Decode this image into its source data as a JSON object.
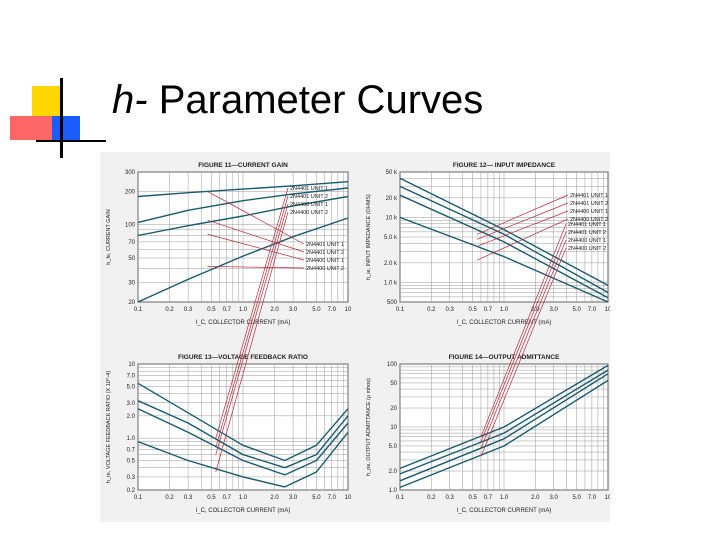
{
  "slide": {
    "title_h": "h-",
    "title_rest": "Parameter Curves"
  },
  "colors": {
    "curve": "#1a5a6e",
    "grid": "#9a9a9a",
    "annot": "#b03040"
  },
  "chart_data": [
    {
      "type": "line",
      "title": "FIGURE 11—CURRENT GAIN",
      "xlabel": "I_C, COLLECTOR CURRENT (mA)",
      "ylabel": "h_fe, CURRENT GAIN",
      "xscale": "log",
      "yscale": "log",
      "xlim": [
        0.1,
        10
      ],
      "ylim": [
        20,
        300
      ],
      "xticks": [
        "0.1",
        "0.2",
        "0.3",
        "0.5",
        "0.7",
        "1.0",
        "2.0",
        "3.0",
        "5.0",
        "7.0",
        "10"
      ],
      "yticks": [
        "300",
        "200",
        "100",
        "70",
        "50",
        "30",
        "20"
      ],
      "series": [
        {
          "name": "2N4401 UNIT 1",
          "x": [
            0.1,
            0.3,
            1,
            3,
            10
          ],
          "y": [
            180,
            195,
            210,
            225,
            245
          ]
        },
        {
          "name": "2N4401 UNIT 2",
          "x": [
            0.1,
            0.3,
            1,
            3,
            10
          ],
          "y": [
            105,
            135,
            165,
            190,
            215
          ]
        },
        {
          "name": "2N4400 UNIT 1",
          "x": [
            0.1,
            0.3,
            1,
            3,
            10
          ],
          "y": [
            80,
            98,
            120,
            148,
            180
          ]
        },
        {
          "name": "2N4400 UNIT 2",
          "x": [
            0.1,
            0.3,
            1,
            3,
            10
          ],
          "y": [
            20,
            32,
            52,
            78,
            115
          ]
        }
      ]
    },
    {
      "type": "line",
      "title": "FIGURE 12— INPUT IMPEDANCE",
      "xlabel": "I_C, COLLECTOR CURRENT (mA)",
      "ylabel": "h_ie, INPUT IMPEDANCE (OHMS)",
      "xscale": "log",
      "yscale": "log",
      "xlim": [
        0.1,
        10
      ],
      "ylim": [
        500,
        50000
      ],
      "xticks": [
        "0.1",
        "0.2",
        "0.3",
        "0.5",
        "0.7",
        "1.0",
        "2.0",
        "3.0",
        "5.0",
        "7.0",
        "10"
      ],
      "yticks": [
        "50 k",
        "20 k",
        "10 k",
        "5.0 k",
        "2.0 k",
        "1.0 k",
        "500"
      ],
      "series": [
        {
          "name": "2N4401 UNIT 1",
          "x": [
            0.1,
            1,
            10
          ],
          "y": [
            40000,
            6500,
            900
          ]
        },
        {
          "name": "2N4401 UNIT 2",
          "x": [
            0.1,
            1,
            10
          ],
          "y": [
            30000,
            5500,
            700
          ]
        },
        {
          "name": "2N4400 UNIT 1",
          "x": [
            0.1,
            1,
            10
          ],
          "y": [
            22000,
            4200,
            580
          ]
        },
        {
          "name": "2N4400 UNIT 2",
          "x": [
            0.1,
            1,
            10
          ],
          "y": [
            10000,
            2500,
            500
          ]
        }
      ]
    },
    {
      "type": "line",
      "title": "FIGURE 13—VOLTAGE FEEDBACK RATIO",
      "xlabel": "I_C, COLLECTOR CURRENT (mA)",
      "ylabel": "h_re, VOLTAGE FEEDBACK RATIO (X 10^-4)",
      "xscale": "log",
      "yscale": "log",
      "xlim": [
        0.1,
        10
      ],
      "ylim": [
        0.2,
        10
      ],
      "xticks": [
        "0.1",
        "0.2",
        "0.3",
        "0.5",
        "0.7",
        "1.0",
        "2.0",
        "3.0",
        "5.0",
        "7.0",
        "10"
      ],
      "yticks": [
        "10",
        "7.0",
        "5.0",
        "3.0",
        "2.0",
        "1.0",
        "0.7",
        "0.5",
        "0.3",
        "0.2"
      ],
      "series": [
        {
          "name": "2N4401 UNIT 1",
          "x": [
            0.1,
            0.3,
            1,
            2.5,
            5,
            10
          ],
          "y": [
            5.5,
            2.2,
            0.8,
            0.5,
            0.8,
            2.5
          ]
        },
        {
          "name": "2N4401 UNIT 2",
          "x": [
            0.1,
            0.3,
            1,
            2.5,
            5,
            10
          ],
          "y": [
            3.2,
            1.6,
            0.6,
            0.4,
            0.6,
            2.0
          ]
        },
        {
          "name": "2N4400 UNIT 1",
          "x": [
            0.1,
            0.3,
            1,
            2.5,
            5,
            10
          ],
          "y": [
            2.5,
            1.2,
            0.5,
            0.32,
            0.5,
            1.6
          ]
        },
        {
          "name": "2N4400 UNIT 2",
          "x": [
            0.1,
            0.3,
            1,
            2.5,
            5,
            10
          ],
          "y": [
            0.9,
            0.5,
            0.3,
            0.22,
            0.35,
            1.2
          ]
        }
      ]
    },
    {
      "type": "line",
      "title": "FIGURE 14—OUTPUT ADMITTANCE",
      "xlabel": "I_C, COLLECTOR CURRENT (mA)",
      "ylabel": "h_oe, OUTPUT ADMITTANCE (μ mhos)",
      "xscale": "log",
      "yscale": "log",
      "xlim": [
        0.1,
        10
      ],
      "ylim": [
        1,
        100
      ],
      "xticks": [
        "0.1",
        "0.2",
        "0.3",
        "0.5",
        "0.7",
        "1.0",
        "2.0",
        "3.0",
        "5.0",
        "7.0",
        "10"
      ],
      "yticks": [
        "100",
        "50",
        "20",
        "10",
        "5.0",
        "2.0",
        "1.0"
      ],
      "series": [
        {
          "name": "2N4401 UNIT 1",
          "x": [
            0.1,
            1,
            10
          ],
          "y": [
            2.2,
            10,
            95
          ]
        },
        {
          "name": "2N4401 UNIT 2",
          "x": [
            0.1,
            1,
            10
          ],
          "y": [
            1.8,
            8,
            80
          ]
        },
        {
          "name": "2N4400 UNIT 1",
          "x": [
            0.1,
            1,
            10
          ],
          "y": [
            1.4,
            6.5,
            70
          ]
        },
        {
          "name": "2N4400 UNIT 2",
          "x": [
            0.1,
            1,
            10
          ],
          "y": [
            1.1,
            5,
            55
          ]
        }
      ]
    }
  ]
}
